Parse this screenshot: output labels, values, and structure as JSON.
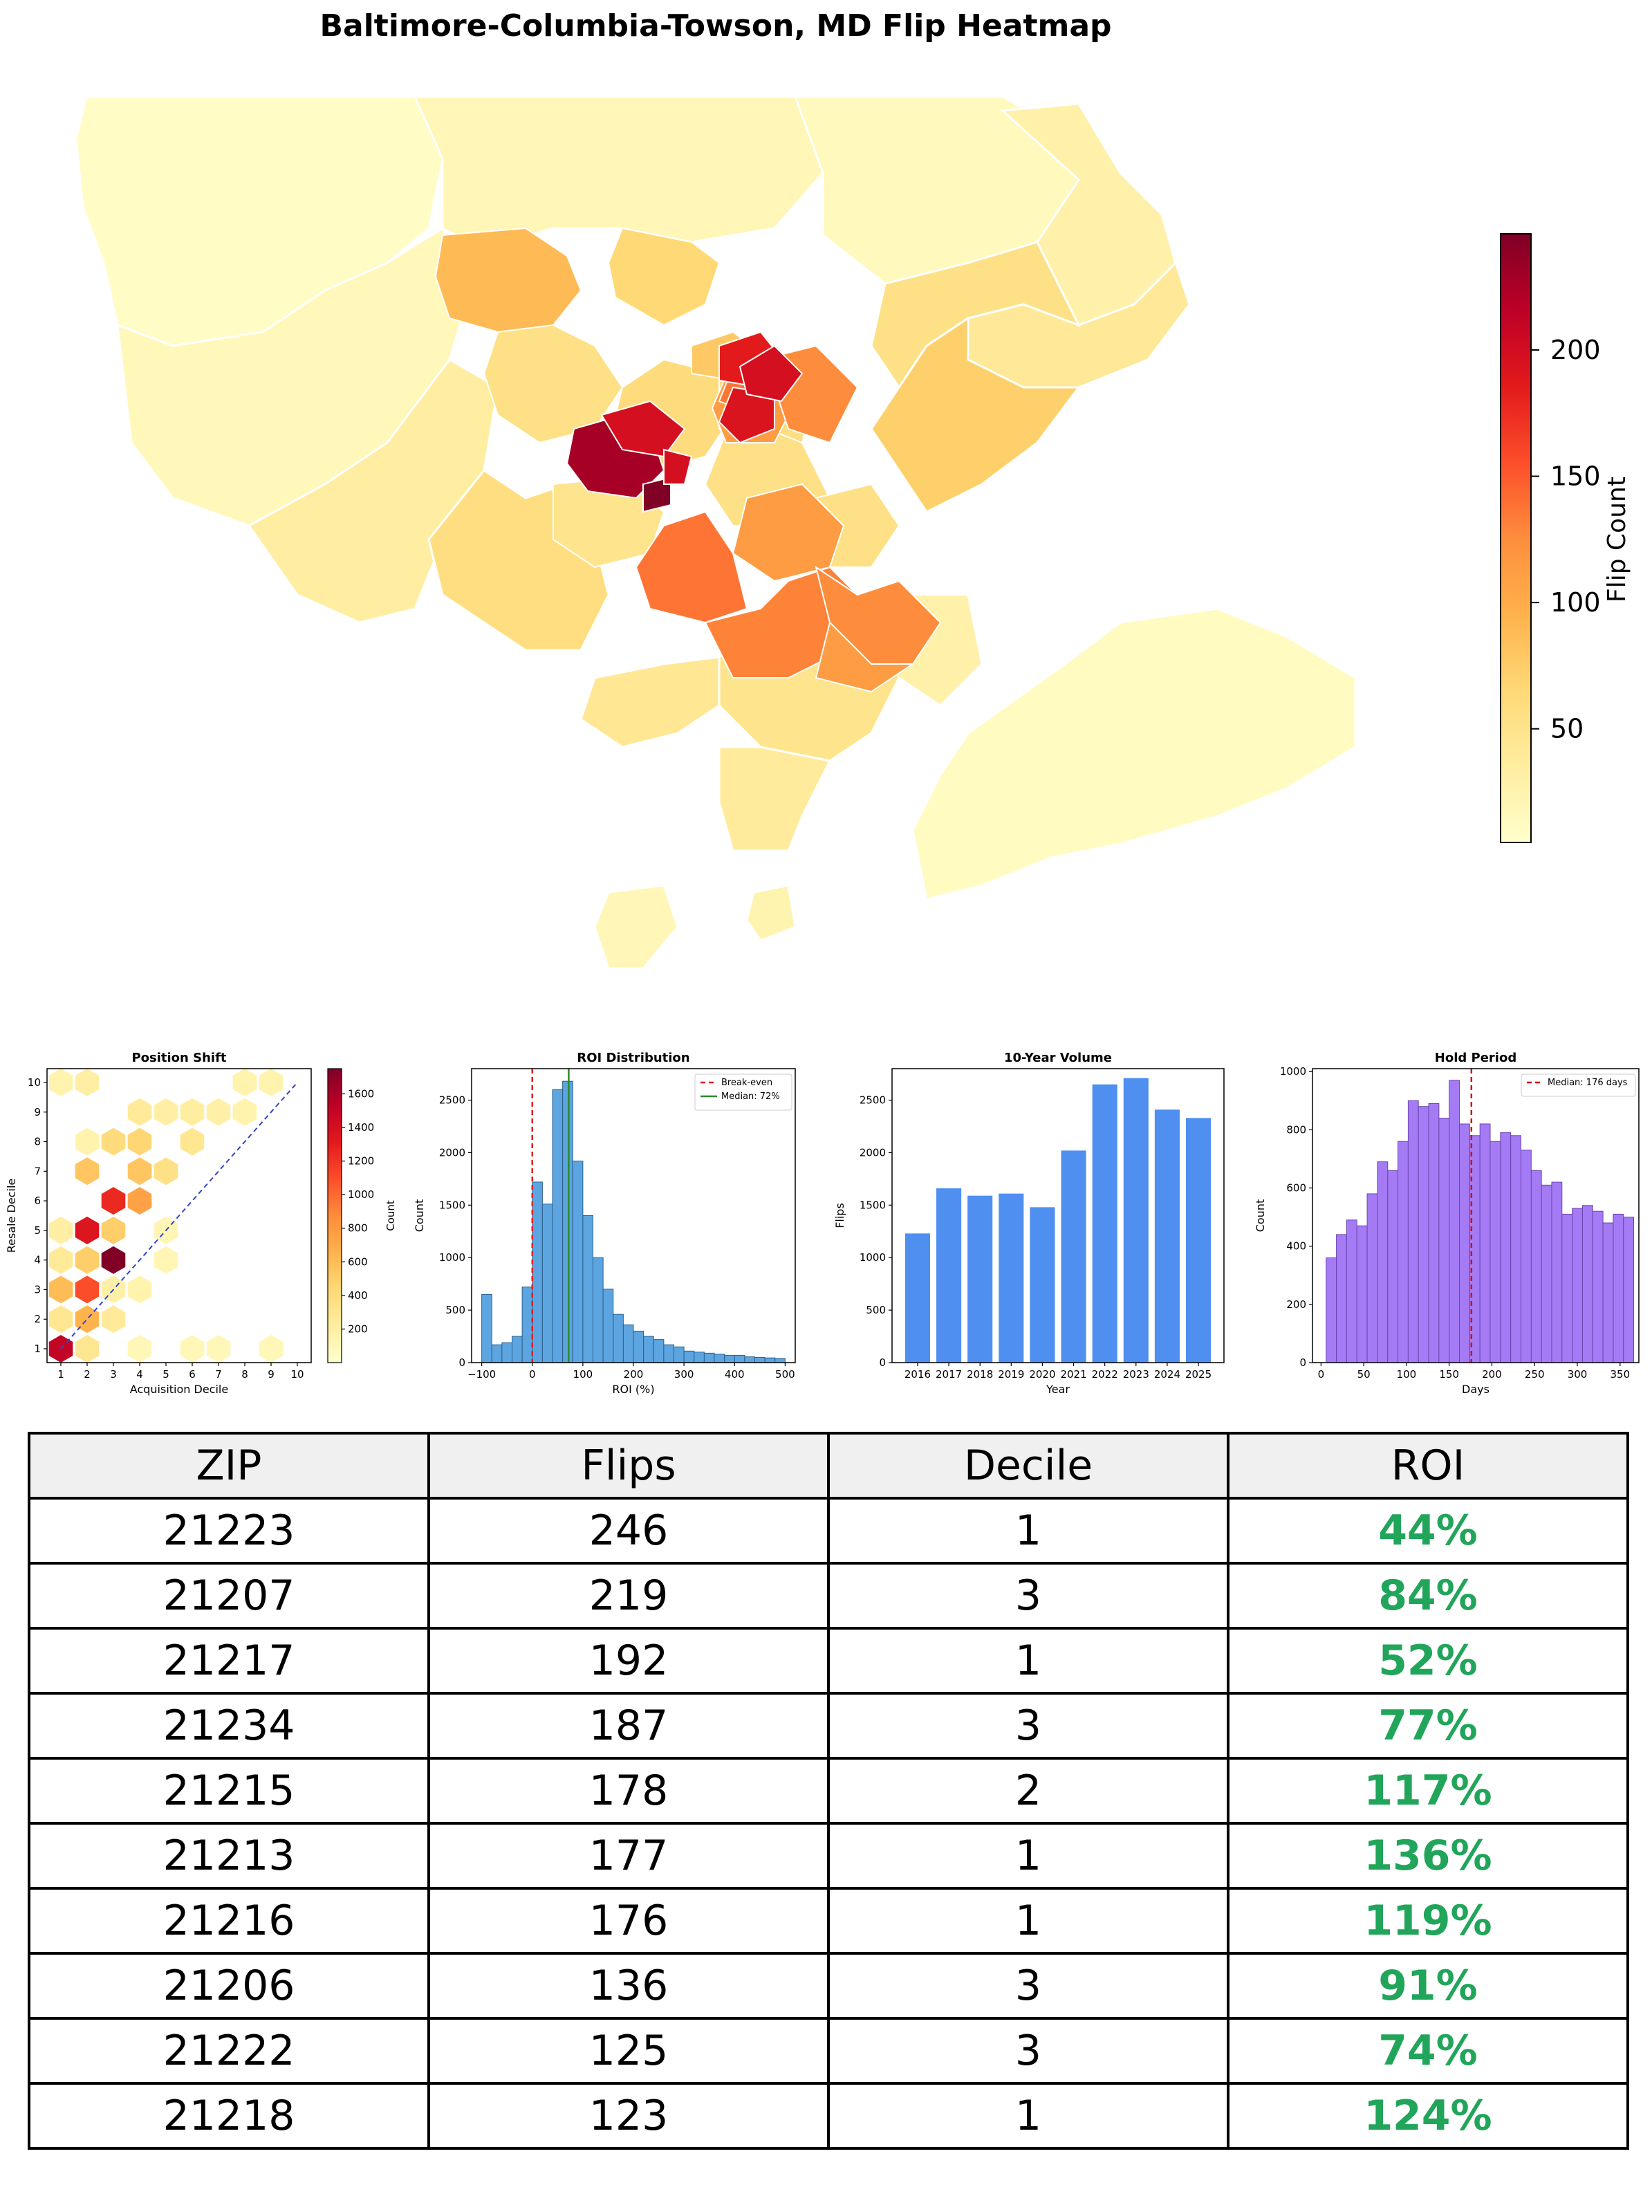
{
  "title": "Baltimore-Columbia-Towson, MD Flip Heatmap",
  "colors": {
    "ylorrd": [
      "#ffffcc",
      "#ffeda0",
      "#fed976",
      "#feb24c",
      "#fd8d3c",
      "#fc4e2a",
      "#e31a1c",
      "#bd0026",
      "#800026"
    ],
    "hist_blue": "#5da5e0",
    "bar_blue": "#4f8ff0",
    "purple": "#a57bf5",
    "roi_green": "#21a55a"
  },
  "heatmap_colorbar": {
    "label": "Flip Count",
    "ticks": [
      "200",
      "150",
      "100",
      "50"
    ],
    "range": [
      5,
      246
    ]
  },
  "chart_data": [
    {
      "type": "heatmap",
      "title": "Position Shift",
      "xlabel": "Acquisition Decile",
      "ylabel": "Resale Decile",
      "xlim": [
        1,
        10
      ],
      "ylim": [
        1,
        10
      ],
      "x_ticks": [
        "1",
        "2",
        "3",
        "4",
        "5",
        "6",
        "7",
        "8",
        "9",
        "10"
      ],
      "y_ticks": [
        "1",
        "2",
        "3",
        "4",
        "5",
        "6",
        "7",
        "8",
        "9",
        "10"
      ],
      "colorbar": {
        "label": "Count",
        "ticks": [
          "1600",
          "1400",
          "1200",
          "1000",
          "800",
          "600",
          "400",
          "200"
        ],
        "range": [
          0,
          1750
        ]
      },
      "cells": [
        {
          "x": 1,
          "y": 1,
          "v": 1500
        },
        {
          "x": 2,
          "y": 2,
          "v": 650
        },
        {
          "x": 2,
          "y": 1,
          "v": 300
        },
        {
          "x": 1,
          "y": 3,
          "v": 600
        },
        {
          "x": 2,
          "y": 3,
          "v": 1100
        },
        {
          "x": 2,
          "y": 4,
          "v": 500
        },
        {
          "x": 3,
          "y": 4,
          "v": 1750
        },
        {
          "x": 3,
          "y": 5,
          "v": 500
        },
        {
          "x": 2,
          "y": 5,
          "v": 1350
        },
        {
          "x": 3,
          "y": 6,
          "v": 1250
        },
        {
          "x": 2,
          "y": 7,
          "v": 550
        },
        {
          "x": 4,
          "y": 6,
          "v": 750
        },
        {
          "x": 3,
          "y": 8,
          "v": 400
        },
        {
          "x": 4,
          "y": 7,
          "v": 550
        },
        {
          "x": 4,
          "y": 8,
          "v": 450
        },
        {
          "x": 5,
          "y": 7,
          "v": 350
        },
        {
          "x": 6,
          "y": 8,
          "v": 300
        },
        {
          "x": 1,
          "y": 5,
          "v": 200
        },
        {
          "x": 1,
          "y": 10,
          "v": 150
        },
        {
          "x": 2,
          "y": 10,
          "v": 200
        },
        {
          "x": 4,
          "y": 9,
          "v": 250
        },
        {
          "x": 5,
          "y": 9,
          "v": 200
        },
        {
          "x": 6,
          "y": 9,
          "v": 220
        },
        {
          "x": 7,
          "y": 9,
          "v": 180
        },
        {
          "x": 8,
          "y": 10,
          "v": 150
        },
        {
          "x": 9,
          "y": 10,
          "v": 150
        },
        {
          "x": 3,
          "y": 2,
          "v": 250
        },
        {
          "x": 3,
          "y": 3,
          "v": 180
        },
        {
          "x": 4,
          "y": 3,
          "v": 150
        },
        {
          "x": 5,
          "y": 4,
          "v": 120
        },
        {
          "x": 6,
          "y": 1,
          "v": 100
        },
        {
          "x": 7,
          "y": 1,
          "v": 100
        },
        {
          "x": 9,
          "y": 1,
          "v": 100
        },
        {
          "x": 4,
          "y": 1,
          "v": 100
        },
        {
          "x": 1,
          "y": 2,
          "v": 300
        },
        {
          "x": 1,
          "y": 4,
          "v": 250
        },
        {
          "x": 2,
          "y": 8,
          "v": 150
        },
        {
          "x": 5,
          "y": 5,
          "v": 120
        },
        {
          "x": 8,
          "y": 9,
          "v": 150
        }
      ],
      "reference_line": "diagonal"
    },
    {
      "type": "bar",
      "title": "ROI Distribution",
      "xlabel": "ROI (%)",
      "ylabel": "Count",
      "xlim": [
        -120,
        520
      ],
      "ylim": [
        0,
        2800
      ],
      "x_ticks": [
        "−100",
        "0",
        "100",
        "200",
        "300",
        "400",
        "500"
      ],
      "y_ticks": [
        "0",
        "500",
        "1000",
        "1500",
        "2000",
        "2500"
      ],
      "bin_width": 20,
      "bin_starts": [
        -100,
        -80,
        -60,
        -40,
        -20,
        0,
        20,
        40,
        60,
        80,
        100,
        120,
        140,
        160,
        180,
        200,
        220,
        240,
        260,
        280,
        300,
        320,
        340,
        360,
        380,
        400,
        420,
        440,
        460,
        480
      ],
      "values": [
        650,
        170,
        190,
        250,
        720,
        1720,
        1510,
        2600,
        2680,
        1920,
        1400,
        1000,
        700,
        460,
        360,
        300,
        250,
        220,
        170,
        150,
        110,
        100,
        90,
        80,
        70,
        70,
        55,
        50,
        45,
        40
      ],
      "legend": [
        "Break-even",
        "Median: 72%"
      ],
      "break_even": 0,
      "median": 72
    },
    {
      "type": "bar",
      "title": "10-Year Volume",
      "xlabel": "Year",
      "ylabel": "Flips",
      "ylim": [
        0,
        2800
      ],
      "categories": [
        "2016",
        "2017",
        "2018",
        "2019",
        "2020",
        "2021",
        "2022",
        "2023",
        "2024",
        "2025"
      ],
      "values": [
        1230,
        1660,
        1590,
        1610,
        1480,
        2020,
        2650,
        2710,
        2410,
        2330
      ],
      "y_ticks": [
        "0",
        "500",
        "1000",
        "1500",
        "2000",
        "2500"
      ]
    },
    {
      "type": "bar",
      "title": "Hold Period",
      "xlabel": "Days",
      "ylabel": "Count",
      "xlim": [
        -10,
        372
      ],
      "ylim": [
        0,
        1010
      ],
      "x_ticks": [
        "0",
        "50",
        "100",
        "150",
        "200",
        "250",
        "300",
        "350"
      ],
      "y_ticks": [
        "0",
        "200",
        "400",
        "600",
        "800",
        "1000"
      ],
      "bin_width": 12,
      "bin_starts": [
        6,
        18,
        30,
        42,
        54,
        66,
        78,
        90,
        102,
        114,
        126,
        138,
        150,
        162,
        174,
        186,
        198,
        210,
        222,
        234,
        246,
        258,
        270,
        282,
        294,
        306,
        318,
        330,
        342,
        354
      ],
      "values": [
        360,
        440,
        490,
        470,
        580,
        690,
        660,
        760,
        900,
        880,
        890,
        840,
        970,
        820,
        780,
        820,
        760,
        790,
        780,
        730,
        660,
        610,
        620,
        510,
        530,
        540,
        520,
        480,
        510,
        500
      ],
      "legend": [
        "Median: 176 days"
      ],
      "median": 176
    },
    {
      "type": "table",
      "columns": [
        "ZIP",
        "Flips",
        "Decile",
        "ROI"
      ],
      "rows": [
        [
          "21223",
          "246",
          "1",
          "44%"
        ],
        [
          "21207",
          "219",
          "3",
          "84%"
        ],
        [
          "21217",
          "192",
          "1",
          "52%"
        ],
        [
          "21234",
          "187",
          "3",
          "77%"
        ],
        [
          "21215",
          "178",
          "2",
          "117%"
        ],
        [
          "21213",
          "177",
          "1",
          "136%"
        ],
        [
          "21216",
          "176",
          "1",
          "119%"
        ],
        [
          "21206",
          "136",
          "3",
          "91%"
        ],
        [
          "21222",
          "125",
          "3",
          "74%"
        ],
        [
          "21218",
          "123",
          "1",
          "124%"
        ]
      ]
    }
  ]
}
